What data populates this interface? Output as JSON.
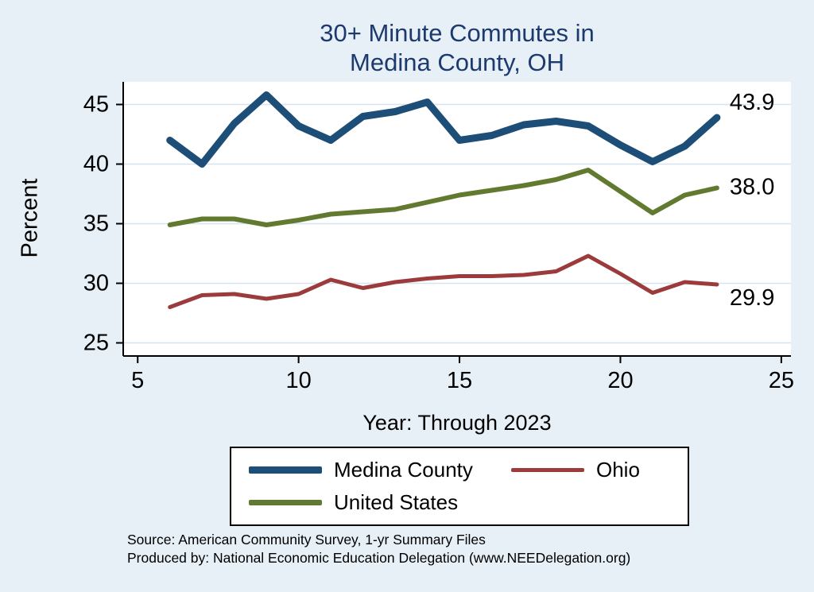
{
  "title": {
    "line1": "30+ Minute Commutes in",
    "line2": "Medina County, OH"
  },
  "ylabel": "Percent",
  "xlabel": "Year: Through 2023",
  "source": {
    "line1": "Source: American Community Survey, 1-yr Summary Files",
    "line2": "Produced by: National Economic Education Delegation (www.NEEDelegation.org)"
  },
  "colors": {
    "page_background": "#e7f0f7",
    "plot_background": "#ffffff",
    "gridline": "#d6e4f0",
    "axis": "#000000",
    "title_text": "#1c3a6e",
    "medina": "#1d4e77",
    "ohio": "#9c3b3c",
    "united_states": "#627a30"
  },
  "legend": [
    {
      "label": "Medina County",
      "color": "#1d4e77"
    },
    {
      "label": "Ohio",
      "color": "#9c3b3c"
    },
    {
      "label": "United States",
      "color": "#627a30"
    }
  ],
  "chart_data": {
    "type": "line",
    "title": "30+ Minute Commutes in Medina County, OH",
    "xlabel": "Year: Through 2023",
    "ylabel": "Percent",
    "xlim": [
      4.55,
      25.3
    ],
    "ylim": [
      23.9,
      46.9
    ],
    "xticks": [
      5,
      10,
      15,
      20,
      25
    ],
    "yticks": [
      25,
      30,
      35,
      40,
      45
    ],
    "grid": "horizontal-only",
    "legend_position": "bottom",
    "x": [
      6,
      7,
      8,
      9,
      10,
      11,
      12,
      13,
      14,
      15,
      16,
      17,
      18,
      19,
      20,
      21,
      22,
      23
    ],
    "series": [
      {
        "name": "medina-county",
        "label": "Medina County",
        "color": "#1d4e77",
        "width": 9,
        "values": [
          42.0,
          40.0,
          43.4,
          45.8,
          43.2,
          42.0,
          44.0,
          44.4,
          45.2,
          42.0,
          42.4,
          43.3,
          43.6,
          43.2,
          41.6,
          40.2,
          41.5,
          43.9
        ]
      },
      {
        "name": "united-states",
        "label": "United States",
        "color": "#627a30",
        "width": 6,
        "values": [
          34.9,
          35.4,
          35.4,
          34.9,
          35.3,
          35.8,
          36.0,
          36.2,
          36.8,
          37.4,
          37.8,
          38.2,
          38.7,
          39.5,
          37.7,
          35.9,
          37.4,
          38.0
        ]
      },
      {
        "name": "ohio",
        "label": "Ohio",
        "color": "#9c3b3c",
        "width": 5,
        "values": [
          28.0,
          29.0,
          29.1,
          28.7,
          29.1,
          30.3,
          29.6,
          30.1,
          30.4,
          30.6,
          30.6,
          30.7,
          31.0,
          32.3,
          30.8,
          29.2,
          30.1,
          29.9
        ]
      }
    ],
    "end_labels": [
      {
        "text": "43.9",
        "value": 43.9,
        "dy": -10
      },
      {
        "text": "38.0",
        "value": 38.0,
        "dy": 8
      },
      {
        "text": "29.9",
        "value": 29.9,
        "dy": 26
      }
    ]
  }
}
